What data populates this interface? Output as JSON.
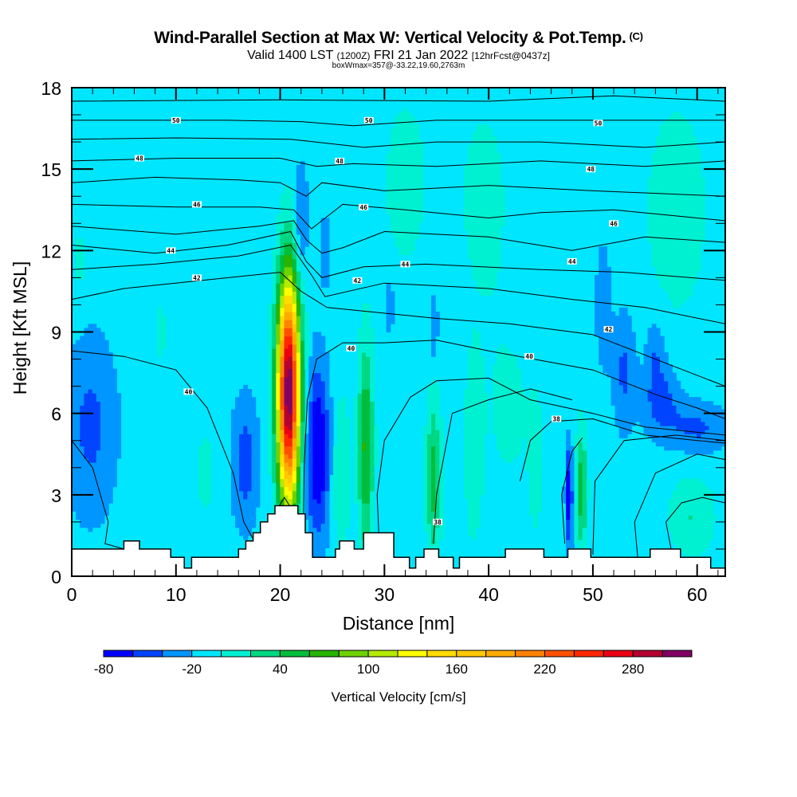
{
  "header": {
    "title": "Wind-Parallel Section at Max W: Vertical Velocity & Pot.Temp.",
    "copyright": "(C)",
    "valid_prefix": "Valid 1400 LST",
    "valid_utc": "(1200Z)",
    "valid_date": "FRI 21 Jan 2022",
    "forecast": "[12hrFcst@0437z]",
    "box_info": "boxWmax=357@-33.22,19.60,2763m"
  },
  "chart_data": {
    "type": "heatmap",
    "title": "Wind-Parallel Section at Max W: Vertical Velocity & Pot.Temp.",
    "xlabel": "Distance [nm]",
    "ylabel": "Height [Kft MSL]",
    "xlim": [
      0,
      62.7
    ],
    "ylim": [
      0,
      18
    ],
    "x_ticks": [
      0,
      10,
      20,
      30,
      40,
      50,
      60
    ],
    "y_ticks": [
      0,
      3,
      6,
      9,
      12,
      15,
      18
    ],
    "x_minor_step": 2,
    "y_minor_step": 1,
    "background_value": -10,
    "colorbar": {
      "title": "Vertical Velocity [cm/s]",
      "min": -80,
      "max": 320,
      "step": 20,
      "tick_labels": [
        "-80",
        "-20",
        "40",
        "100",
        "160",
        "220",
        "280"
      ],
      "tick_values": [
        -80,
        -20,
        40,
        100,
        160,
        220,
        280
      ],
      "colors": [
        "#0000ff",
        "#0044ff",
        "#0096ff",
        "#00e6ff",
        "#00f0d2",
        "#00d782",
        "#00be3c",
        "#28b400",
        "#6ed200",
        "#b4eb00",
        "#ffff00",
        "#ffdc00",
        "#ffc800",
        "#ffaa00",
        "#ff8200",
        "#ff5000",
        "#ff2800",
        "#eb0014",
        "#b40032",
        "#820064"
      ]
    },
    "velocity_features": [
      {
        "name": "main-updraft",
        "x": 20.8,
        "y": 6.8,
        "peak": 310
      },
      {
        "name": "downdraft-lee",
        "x": 23.5,
        "y": 4.5,
        "peak": -70
      },
      {
        "name": "updraft-27nm",
        "x": 28.2,
        "y": 4.5,
        "peak": 70
      },
      {
        "name": "downdraft-left",
        "x": 1.5,
        "y": 5.5,
        "peak": -40
      },
      {
        "name": "downdraft-16nm",
        "x": 16.5,
        "y": 4.0,
        "peak": -40
      },
      {
        "name": "updraft-35nm",
        "x": 34.7,
        "y": 3.5,
        "peak": 60
      },
      {
        "name": "updraft-49nm",
        "x": 48.8,
        "y": 3.0,
        "peak": 60
      },
      {
        "name": "downdraft-48nm",
        "x": 47.8,
        "y": 3.2,
        "peak": -60
      },
      {
        "name": "downdraft-upper-right",
        "x": 57.0,
        "y": 6.5,
        "peak": -40
      }
    ],
    "theta_contours": {
      "label": "Potential Temperature",
      "interval": 1,
      "labeled_values": [
        {
          "value": "50",
          "x": 10.0,
          "y": 16.8
        },
        {
          "value": "50",
          "x": 28.5,
          "y": 16.8
        },
        {
          "value": "50",
          "x": 50.5,
          "y": 16.7
        },
        {
          "value": "48",
          "x": 6.5,
          "y": 15.4
        },
        {
          "value": "48",
          "x": 25.7,
          "y": 15.3
        },
        {
          "value": "48",
          "x": 49.8,
          "y": 15.0
        },
        {
          "value": "46",
          "x": 12.0,
          "y": 13.7
        },
        {
          "value": "46",
          "x": 28.0,
          "y": 13.6
        },
        {
          "value": "46",
          "x": 52.0,
          "y": 13.0
        },
        {
          "value": "44",
          "x": 9.5,
          "y": 12.0
        },
        {
          "value": "44",
          "x": 32.0,
          "y": 11.5
        },
        {
          "value": "44",
          "x": 48.0,
          "y": 11.6
        },
        {
          "value": "42",
          "x": 12.0,
          "y": 11.0
        },
        {
          "value": "42",
          "x": 27.4,
          "y": 10.9
        },
        {
          "value": "42",
          "x": 51.5,
          "y": 9.1
        },
        {
          "value": "40",
          "x": 11.2,
          "y": 6.8
        },
        {
          "value": "40",
          "x": 26.8,
          "y": 8.4
        },
        {
          "value": "40",
          "x": 43.9,
          "y": 8.1
        },
        {
          "value": "38",
          "x": 46.5,
          "y": 5.8
        },
        {
          "value": "38",
          "x": 35.1,
          "y": 2.0
        }
      ]
    },
    "terrain_kft": [
      [
        0,
        1.0
      ],
      [
        5,
        1.0
      ],
      [
        5,
        1.3
      ],
      [
        6.5,
        1.3
      ],
      [
        6.5,
        1.0
      ],
      [
        9.5,
        1.0
      ],
      [
        9.5,
        0.7
      ],
      [
        10.8,
        0.7
      ],
      [
        10.8,
        0.3
      ],
      [
        11.5,
        0.3
      ],
      [
        11.5,
        0.7
      ],
      [
        16,
        0.7
      ],
      [
        16,
        1.0
      ],
      [
        16.7,
        1.0
      ],
      [
        16.7,
        1.3
      ],
      [
        17.4,
        1.3
      ],
      [
        17.4,
        1.6
      ],
      [
        18.1,
        1.6
      ],
      [
        18.1,
        2.0
      ],
      [
        18.8,
        2.0
      ],
      [
        18.8,
        2.3
      ],
      [
        19.5,
        2.3
      ],
      [
        19.5,
        2.6
      ],
      [
        21.7,
        2.6
      ],
      [
        21.7,
        2.3
      ],
      [
        22.4,
        2.3
      ],
      [
        22.4,
        1.6
      ],
      [
        23.1,
        1.6
      ],
      [
        23.1,
        0.7
      ],
      [
        25.3,
        0.7
      ],
      [
        25.3,
        1.0
      ],
      [
        25.7,
        1.0
      ],
      [
        25.7,
        1.3
      ],
      [
        27.1,
        1.3
      ],
      [
        27.1,
        1.0
      ],
      [
        28.0,
        1.0
      ],
      [
        28.0,
        1.6
      ],
      [
        30.9,
        1.6
      ],
      [
        30.9,
        0.7
      ],
      [
        32.4,
        0.7
      ],
      [
        32.4,
        0.3
      ],
      [
        33.0,
        0.3
      ],
      [
        33.0,
        0.7
      ],
      [
        33.8,
        0.7
      ],
      [
        33.8,
        1.0
      ],
      [
        35.2,
        1.0
      ],
      [
        35.2,
        0.7
      ],
      [
        36.6,
        0.7
      ],
      [
        36.6,
        0.3
      ],
      [
        37.2,
        0.3
      ],
      [
        37.2,
        0.7
      ],
      [
        41.6,
        0.7
      ],
      [
        41.6,
        1.0
      ],
      [
        45.3,
        1.0
      ],
      [
        45.3,
        0.7
      ],
      [
        47.6,
        0.7
      ],
      [
        47.6,
        1.0
      ],
      [
        49.8,
        1.0
      ],
      [
        49.8,
        0.7
      ],
      [
        55.5,
        0.7
      ],
      [
        55.5,
        1.0
      ],
      [
        58.4,
        1.0
      ],
      [
        58.4,
        0.7
      ],
      [
        61.3,
        0.7
      ],
      [
        61.3,
        0.3
      ],
      [
        62.7,
        0.3
      ]
    ]
  }
}
